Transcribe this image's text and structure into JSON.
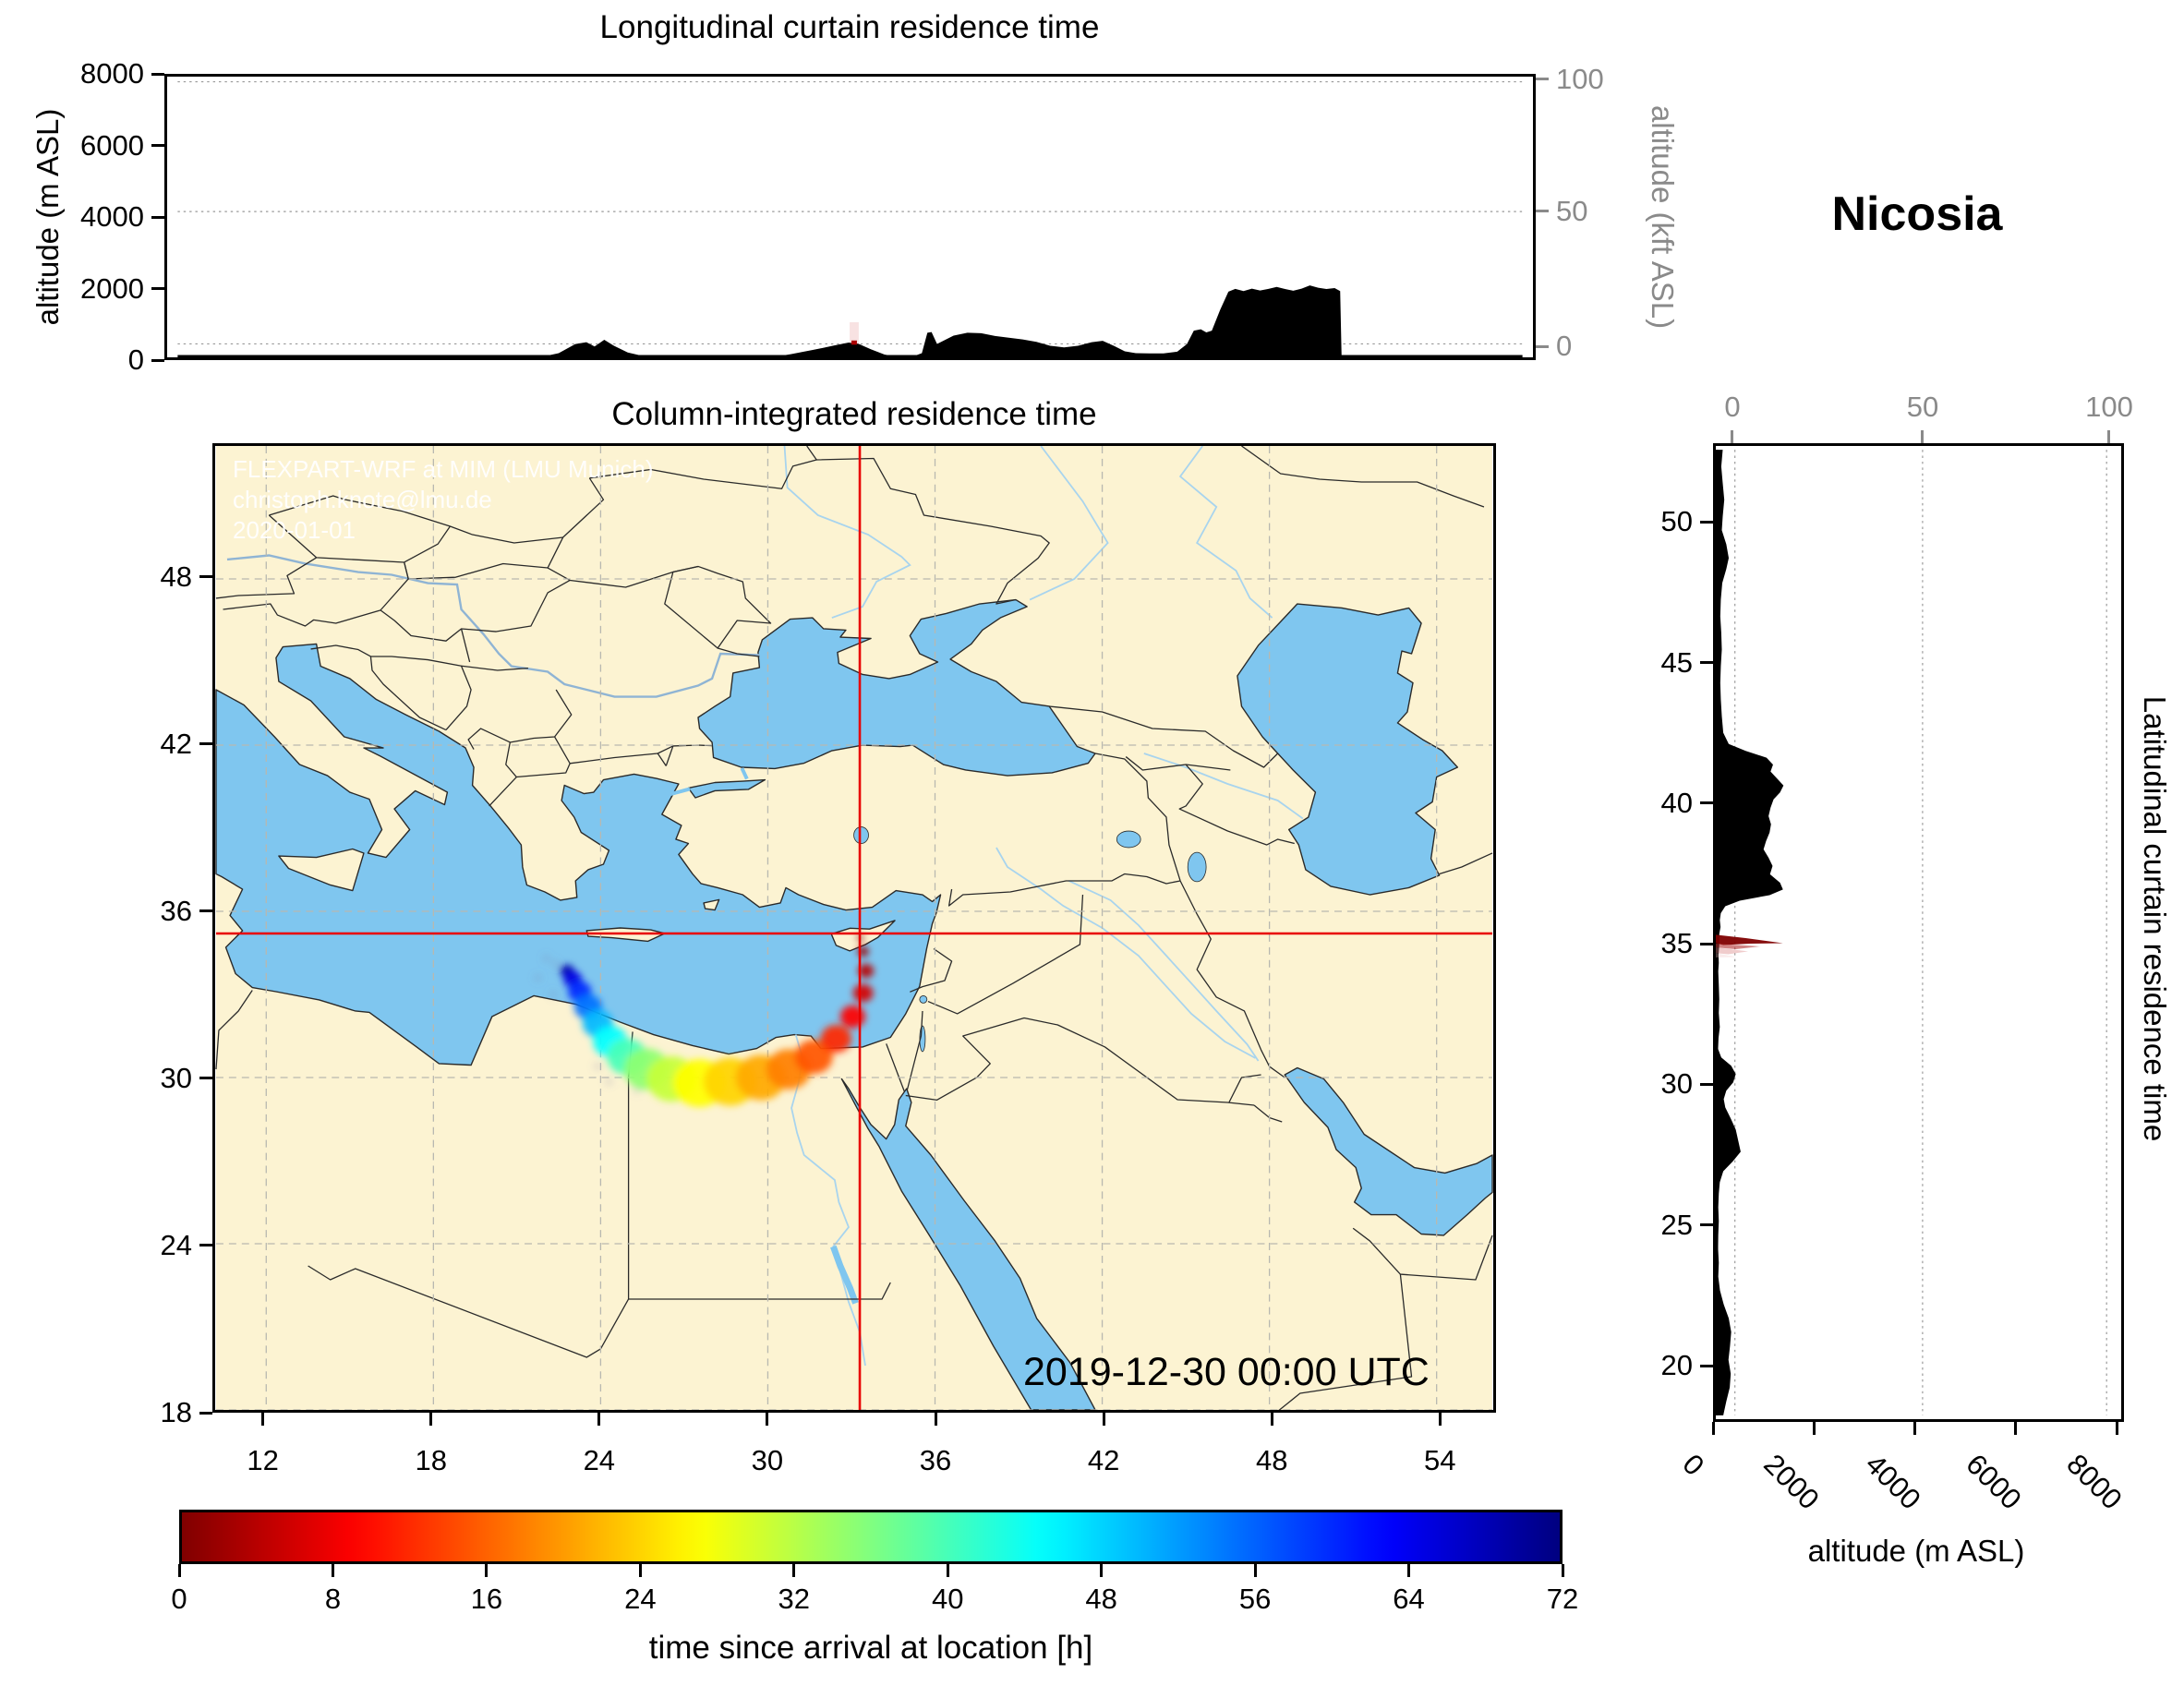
{
  "station": {
    "name": "Nicosia"
  },
  "titles": {
    "longitudinal": "Longitudinal curtain residence time",
    "map": "Column-integrated residence time",
    "latitudinal": "Latitudinal curtain residence time"
  },
  "labels": {
    "alt_m": "altitude (m ASL)",
    "alt_kft": "altitude (kft ASL)",
    "colorbar": "time since arrival at location [h]"
  },
  "timestamp": "2019-12-30 00:00 UTC",
  "watermark": [
    "FLEXPART-WRF at MIM (LMU Munich)",
    "christoph.knote@lmu.de",
    "2020-01-01"
  ],
  "colors": {
    "sea": "#7fc6ef",
    "land": "#fcf3d2",
    "coast_border": "#2a2a2a",
    "terrain": "#000000",
    "crosshair": "#e80000",
    "source_marker": "#aa0000",
    "gridline": "#b8b8b0",
    "secondary_axis": "#8a8a8a",
    "river": "#a8d4ee",
    "colormap": "jet_reversed"
  },
  "chart_data": {
    "type": "composite",
    "longitudinal_curtain": {
      "type": "area",
      "lon_range": [
        8.8,
        57.5
      ],
      "alt_range_m": [
        0,
        8000
      ],
      "alt_ticks_m": [
        0,
        2000,
        4000,
        6000,
        8000
      ],
      "kft_ticks": [
        0,
        50,
        100
      ],
      "kft_tick_m_equiv": [
        384,
        4155,
        7853
      ],
      "terrain_lon_m": [
        [
          8.8,
          0
        ],
        [
          21.9,
          0
        ],
        [
          22.6,
          120
        ],
        [
          23.2,
          380
        ],
        [
          23.6,
          430
        ],
        [
          23.9,
          310
        ],
        [
          24.25,
          500
        ],
        [
          24.6,
          330
        ],
        [
          25.1,
          140
        ],
        [
          25.8,
          10
        ],
        [
          26.5,
          0
        ],
        [
          30.3,
          0
        ],
        [
          31.0,
          90
        ],
        [
          31.8,
          210
        ],
        [
          32.6,
          340
        ],
        [
          33.1,
          420
        ],
        [
          33.45,
          390
        ],
        [
          33.9,
          230
        ],
        [
          34.4,
          80
        ],
        [
          34.9,
          10
        ],
        [
          35.4,
          15
        ],
        [
          35.75,
          120
        ],
        [
          35.95,
          700
        ],
        [
          36.1,
          720
        ],
        [
          36.3,
          380
        ],
        [
          36.6,
          500
        ],
        [
          36.9,
          620
        ],
        [
          37.4,
          700
        ],
        [
          37.9,
          690
        ],
        [
          38.4,
          610
        ],
        [
          38.9,
          560
        ],
        [
          39.4,
          510
        ],
        [
          39.9,
          440
        ],
        [
          40.4,
          330
        ],
        [
          40.9,
          280
        ],
        [
          41.4,
          330
        ],
        [
          41.9,
          430
        ],
        [
          42.3,
          470
        ],
        [
          42.7,
          330
        ],
        [
          43.1,
          170
        ],
        [
          43.5,
          120
        ],
        [
          44.0,
          110
        ],
        [
          44.5,
          110
        ],
        [
          45.0,
          160
        ],
        [
          45.35,
          380
        ],
        [
          45.6,
          760
        ],
        [
          45.85,
          800
        ],
        [
          46.05,
          710
        ],
        [
          46.25,
          760
        ],
        [
          46.55,
          1350
        ],
        [
          46.85,
          1870
        ],
        [
          47.1,
          1950
        ],
        [
          47.4,
          1890
        ],
        [
          47.7,
          1960
        ],
        [
          48.0,
          1905
        ],
        [
          48.3,
          1950
        ],
        [
          48.6,
          2005
        ],
        [
          48.9,
          1945
        ],
        [
          49.2,
          1900
        ],
        [
          49.5,
          1955
        ],
        [
          49.8,
          2050
        ],
        [
          50.1,
          1985
        ],
        [
          50.4,
          1945
        ],
        [
          50.7,
          1975
        ],
        [
          50.9,
          1890
        ],
        [
          50.95,
          0
        ],
        [
          57.5,
          0
        ]
      ],
      "plume": {
        "lon": 33.3,
        "alt_range_m": [
          360,
          1000
        ]
      }
    },
    "map": {
      "type": "heatmap",
      "lon_range": [
        10.2,
        56.0
      ],
      "lat_range": [
        18,
        52.8
      ],
      "lon_ticks": [
        12,
        18,
        24,
        30,
        36,
        42,
        48,
        54
      ],
      "lat_ticks": [
        18,
        24,
        30,
        36,
        42,
        48
      ],
      "source": {
        "lon": 33.3,
        "lat": 35.2
      },
      "plume_lon_lat_hour_spread": [
        [
          33.32,
          35.05,
          0,
          0.12
        ],
        [
          33.42,
          34.55,
          2,
          0.2
        ],
        [
          33.52,
          33.85,
          4,
          0.28
        ],
        [
          33.42,
          33.05,
          6,
          0.36
        ],
        [
          33.05,
          32.2,
          9,
          0.45
        ],
        [
          32.45,
          31.4,
          12,
          0.55
        ],
        [
          31.65,
          30.75,
          15,
          0.68
        ],
        [
          30.75,
          30.3,
          18,
          0.8
        ],
        [
          29.75,
          30.0,
          21,
          0.9
        ],
        [
          28.65,
          29.85,
          24,
          0.95
        ],
        [
          27.55,
          29.8,
          27,
          0.95
        ],
        [
          26.55,
          29.95,
          31,
          0.9
        ],
        [
          25.65,
          30.3,
          35,
          0.82
        ],
        [
          24.95,
          30.75,
          40,
          0.72
        ],
        [
          24.35,
          31.3,
          45,
          0.62
        ],
        [
          23.9,
          31.95,
          50,
          0.55
        ],
        [
          23.55,
          32.55,
          55,
          0.5
        ],
        [
          23.25,
          33.1,
          60,
          0.42
        ],
        [
          23.0,
          33.55,
          65,
          0.33
        ],
        [
          22.8,
          33.85,
          69,
          0.25
        ]
      ],
      "tail_speckles": [
        [
          22.4,
          34.1
        ],
        [
          22.05,
          34.3
        ],
        [
          21.75,
          33.6
        ],
        [
          22.3,
          33.0
        ],
        [
          24.3,
          29.85
        ],
        [
          25.3,
          29.55
        ],
        [
          23.9,
          30.4
        ]
      ]
    },
    "latitudinal_curtain": {
      "type": "area",
      "lat_range": [
        18,
        52.8
      ],
      "lat_ticks": [
        20,
        25,
        30,
        35,
        40,
        45,
        50
      ],
      "alt_range_m": [
        0,
        8000
      ],
      "alt_ticks_m": [
        0,
        2000,
        4000,
        6000,
        8000
      ],
      "kft_ticks": [
        0,
        50,
        100
      ],
      "kft_tick_m_equiv": [
        384,
        4155,
        7853
      ],
      "terrain_lat_m": [
        [
          52.8,
          140
        ],
        [
          52.2,
          110
        ],
        [
          51.6,
          140
        ],
        [
          51.0,
          170
        ],
        [
          50.4,
          140
        ],
        [
          49.9,
          120
        ],
        [
          49.4,
          210
        ],
        [
          48.9,
          260
        ],
        [
          48.5,
          210
        ],
        [
          48.0,
          130
        ],
        [
          47.4,
          100
        ],
        [
          46.8,
          90
        ],
        [
          46.2,
          110
        ],
        [
          45.6,
          120
        ],
        [
          45.0,
          100
        ],
        [
          44.4,
          90
        ],
        [
          43.8,
          100
        ],
        [
          43.2,
          120
        ],
        [
          42.6,
          150
        ],
        [
          42.2,
          260
        ],
        [
          41.95,
          600
        ],
        [
          41.7,
          1020
        ],
        [
          41.45,
          1150
        ],
        [
          41.2,
          1100
        ],
        [
          40.95,
          1230
        ],
        [
          40.7,
          1360
        ],
        [
          40.45,
          1290
        ],
        [
          40.2,
          1160
        ],
        [
          39.9,
          1100
        ],
        [
          39.6,
          1060
        ],
        [
          39.3,
          1110
        ],
        [
          39.0,
          1080
        ],
        [
          38.7,
          1010
        ],
        [
          38.4,
          960
        ],
        [
          38.1,
          1060
        ],
        [
          37.8,
          1140
        ],
        [
          37.5,
          1090
        ],
        [
          37.2,
          1290
        ],
        [
          36.95,
          1350
        ],
        [
          36.75,
          1080
        ],
        [
          36.55,
          480
        ],
        [
          36.35,
          190
        ],
        [
          36.1,
          100
        ],
        [
          35.85,
          80
        ],
        [
          35.6,
          95
        ],
        [
          35.35,
          70
        ],
        [
          35.1,
          75
        ],
        [
          34.85,
          65
        ],
        [
          34.6,
          55
        ],
        [
          34.3,
          60
        ],
        [
          34.0,
          50
        ],
        [
          33.5,
          60
        ],
        [
          33.0,
          70
        ],
        [
          32.5,
          60
        ],
        [
          32.0,
          80
        ],
        [
          31.6,
          55
        ],
        [
          31.2,
          45
        ],
        [
          30.9,
          110
        ],
        [
          30.6,
          310
        ],
        [
          30.3,
          400
        ],
        [
          30.0,
          350
        ],
        [
          29.7,
          210
        ],
        [
          29.4,
          160
        ],
        [
          29.1,
          190
        ],
        [
          28.7,
          300
        ],
        [
          28.3,
          400
        ],
        [
          27.9,
          450
        ],
        [
          27.5,
          500
        ],
        [
          27.15,
          340
        ],
        [
          26.8,
          150
        ],
        [
          26.4,
          80
        ],
        [
          26.0,
          60
        ],
        [
          25.5,
          50
        ],
        [
          25.0,
          60
        ],
        [
          24.5,
          50
        ],
        [
          24.0,
          45
        ],
        [
          23.5,
          60
        ],
        [
          23.0,
          50
        ],
        [
          22.5,
          85
        ],
        [
          22.0,
          160
        ],
        [
          21.5,
          260
        ],
        [
          21.0,
          310
        ],
        [
          20.5,
          285
        ],
        [
          20.0,
          255
        ],
        [
          19.5,
          300
        ],
        [
          19.0,
          280
        ],
        [
          18.5,
          210
        ],
        [
          18.0,
          150
        ]
      ],
      "plume": {
        "lat_center": 35.0,
        "lat_span": [
          34.5,
          35.3
        ],
        "max_alt_m": 1350
      }
    },
    "colorbar": {
      "range_h": [
        0,
        72
      ],
      "ticks_h": [
        0,
        8,
        16,
        24,
        32,
        40,
        48,
        56,
        64,
        72
      ],
      "colormap": "jet_reversed"
    }
  }
}
